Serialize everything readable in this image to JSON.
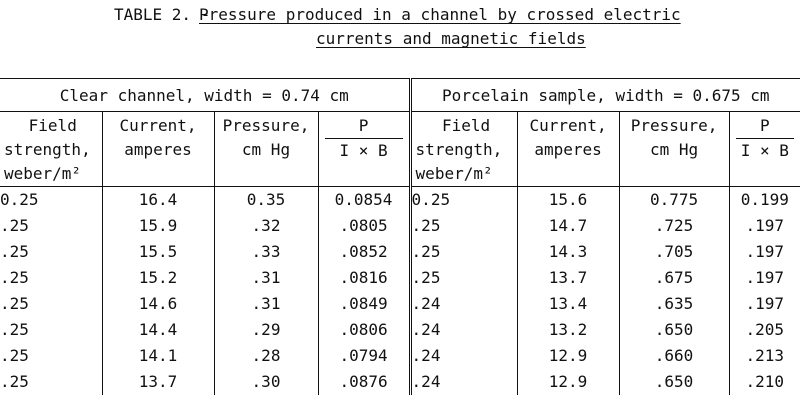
{
  "title": {
    "prefix": "TABLE 2. -",
    "line1": "Pressure produced in a channel by crossed electric",
    "line2": "currents and magnetic fields"
  },
  "groups": [
    {
      "label": "Clear channel, width = 0.74 cm"
    },
    {
      "label": "Porcelain sample, width = 0.675 cm"
    }
  ],
  "headers": {
    "field": [
      "Field",
      "strength,",
      "weber/m²"
    ],
    "current": [
      "Current,",
      "amperes"
    ],
    "pressure": [
      "Pressure,",
      "cm Hg"
    ],
    "p_num": "P",
    "p_den": "I × B"
  },
  "rows": [
    {
      "left": [
        "0.25",
        "16.4",
        "0.35",
        "0.0854"
      ],
      "right": [
        "0.25",
        "15.6",
        "0.775",
        "0.199"
      ]
    },
    {
      "left": [
        ".25",
        "15.9",
        ".32",
        ".0805"
      ],
      "right": [
        ".25",
        "14.7",
        ".725",
        ".197"
      ]
    },
    {
      "left": [
        ".25",
        "15.5",
        ".33",
        ".0852"
      ],
      "right": [
        ".25",
        "14.3",
        ".705",
        ".197"
      ]
    },
    {
      "left": [
        ".25",
        "15.2",
        ".31",
        ".0816"
      ],
      "right": [
        ".25",
        "13.7",
        ".675",
        ".197"
      ]
    },
    {
      "left": [
        ".25",
        "14.6",
        ".31",
        ".0849"
      ],
      "right": [
        ".24",
        "13.4",
        ".635",
        ".197"
      ]
    },
    {
      "left": [
        ".25",
        "14.4",
        ".29",
        ".0806"
      ],
      "right": [
        ".24",
        "13.2",
        ".650",
        ".205"
      ]
    },
    {
      "left": [
        ".25",
        "14.1",
        ".28",
        ".0794"
      ],
      "right": [
        ".24",
        "12.9",
        ".660",
        ".213"
      ]
    },
    {
      "left": [
        ".25",
        "13.7",
        ".30",
        ".0876"
      ],
      "right": [
        ".24",
        "12.9",
        ".650",
        ".210"
      ]
    }
  ]
}
